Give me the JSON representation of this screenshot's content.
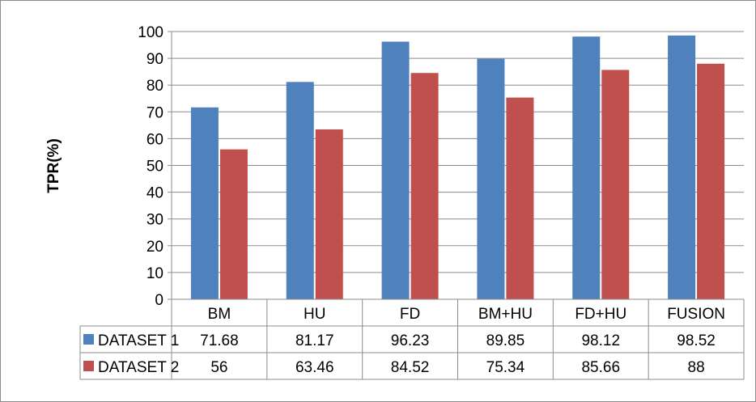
{
  "chart_data": {
    "type": "bar",
    "categories": [
      "BM",
      "HU",
      "FD",
      "BM+HU",
      "FD+HU",
      "FUSION"
    ],
    "series": [
      {
        "name": "DATASET 1",
        "color": "#4f81bd",
        "values": [
          71.68,
          81.17,
          96.23,
          89.85,
          98.12,
          98.52
        ]
      },
      {
        "name": "DATASET 2",
        "color": "#c0504d",
        "values": [
          56,
          63.46,
          84.52,
          75.34,
          85.66,
          88
        ]
      }
    ],
    "value_labels": [
      [
        "71.68",
        "81.17",
        "96.23",
        "89.85",
        "98.12",
        "98.52"
      ],
      [
        "56",
        "63.46",
        "84.52",
        "75.34",
        "85.66",
        "88"
      ]
    ],
    "ylabel": "TPR(%)",
    "ylim": [
      0,
      100
    ],
    "yticks": [
      0,
      10,
      20,
      30,
      40,
      50,
      60,
      70,
      80,
      90,
      100
    ],
    "grid": true,
    "legend": "data-table"
  }
}
